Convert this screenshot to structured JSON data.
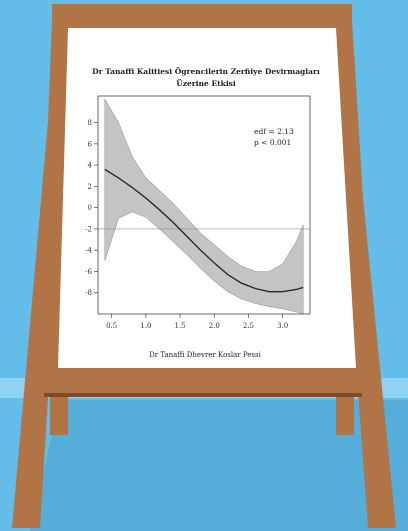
{
  "colors": {
    "background": "#63bde8",
    "wall_stripe": "#8fd2f2",
    "floor": "#4aa0cc",
    "wood": "#b07446",
    "wood_dark": "#7d4b27",
    "poster": "#ffffff",
    "confidence_band": "#c4c4c4",
    "curve": "#2a2a2a"
  },
  "chart_data": {
    "type": "line",
    "title_line1": "Dr Tanaffi Kalitiesi Ögrencilerin Zerfiiye Devirmagları",
    "title_line2": "Üzerine Etkisi",
    "xlabel": "Dr Tanaffi Dhevrer Koslar Pessi",
    "ylabel": "",
    "xlim": [
      0.3,
      3.4
    ],
    "ylim": [
      -10,
      10.5
    ],
    "x_ticks": [
      0.5,
      1.0,
      1.5,
      2.0,
      2.5,
      3.0
    ],
    "x_tick_labels": [
      "0.5",
      "1.0",
      "1.5",
      "2.0",
      "2.5",
      "3.0"
    ],
    "y_ticks": [
      -8,
      -6,
      -4,
      -2,
      0,
      2,
      4,
      6,
      8
    ],
    "y_tick_labels": [
      "-8",
      "-6",
      "-4",
      "-2",
      "0",
      "2",
      "4",
      "6",
      "8"
    ],
    "reference_line_y": -2,
    "annotation": [
      "edf = 2.13",
      "p < 0.001"
    ],
    "series": [
      {
        "x": [
          0.4,
          0.6,
          0.8,
          1.0,
          1.2,
          1.4,
          1.6,
          1.8,
          2.0,
          2.2,
          2.4,
          2.6,
          2.8,
          3.0,
          3.2,
          3.3
        ],
        "values": [
          3.6,
          2.8,
          1.9,
          0.9,
          -0.2,
          -1.4,
          -2.7,
          -4.0,
          -5.2,
          -6.3,
          -7.1,
          -7.6,
          -7.9,
          -7.9,
          -7.7,
          -7.5
        ],
        "lower": [
          -5.0,
          -1.0,
          -0.4,
          -0.9,
          -2.0,
          -3.2,
          -4.4,
          -5.7,
          -6.9,
          -7.9,
          -8.6,
          -9.0,
          -9.3,
          -9.5,
          -9.8,
          -10.0
        ],
        "upper": [
          10.2,
          8.0,
          4.8,
          2.8,
          1.6,
          0.4,
          -1.0,
          -2.4,
          -3.5,
          -4.6,
          -5.5,
          -6.0,
          -6.0,
          -5.3,
          -3.2,
          -1.6
        ]
      }
    ]
  }
}
